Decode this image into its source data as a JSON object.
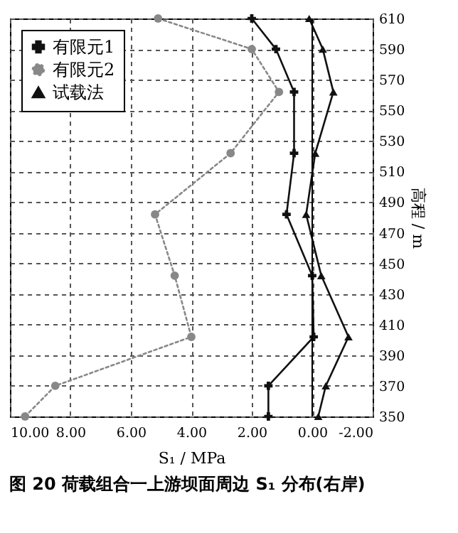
{
  "chart_data": {
    "type": "line",
    "title": "图 20 荷载组合一上游坝面周边 S₁ 分布(右岸)",
    "xlabel": "S₁ / MPa",
    "ylabel": "高程 / m",
    "xlim": [
      10,
      -2
    ],
    "xticks": [
      {
        "value": 10,
        "label": "10.00"
      },
      {
        "value": 8,
        "label": "8.00"
      },
      {
        "value": 6,
        "label": "6.00"
      },
      {
        "value": 4,
        "label": "4.00"
      },
      {
        "value": 2,
        "label": "2.00"
      },
      {
        "value": 0,
        "label": "0.00"
      },
      {
        "value": -2,
        "label": "-2.00"
      }
    ],
    "ylim": [
      350,
      610
    ],
    "yticks": [
      350,
      370,
      390,
      410,
      430,
      450,
      470,
      490,
      510,
      530,
      550,
      570,
      590,
      610
    ],
    "grid": true,
    "legend": "top left",
    "ref_lines": [
      {
        "axis": "x",
        "value": 0,
        "color": "#000000"
      }
    ],
    "series": [
      {
        "name": "有限元1",
        "color": "#111111",
        "marker": "cross",
        "line_style": "solid",
        "x": [
          2.0,
          1.2,
          0.6,
          0.6,
          0.85,
          0.0,
          -0.05,
          1.45,
          1.45
        ],
        "values": [
          610,
          590,
          562,
          522,
          482,
          442,
          402,
          370,
          350
        ]
      },
      {
        "name": "有限元2",
        "color": "#888888",
        "marker": "circle",
        "line_style": "dotted",
        "x": [
          5.1,
          2.0,
          1.1,
          2.7,
          5.2,
          4.55,
          4.0,
          8.5,
          9.5
        ],
        "values": [
          610,
          590,
          562,
          522,
          482,
          442,
          402,
          370,
          350
        ]
      },
      {
        "name": "试载法",
        "color": "#111111",
        "marker": "triangle",
        "line_style": "solid",
        "x": [
          0.1,
          -0.35,
          -0.7,
          -0.1,
          0.2,
          -0.3,
          -1.2,
          -0.45,
          -0.2
        ],
        "values": [
          610,
          590,
          562,
          522,
          482,
          442,
          402,
          370,
          350
        ]
      }
    ]
  }
}
